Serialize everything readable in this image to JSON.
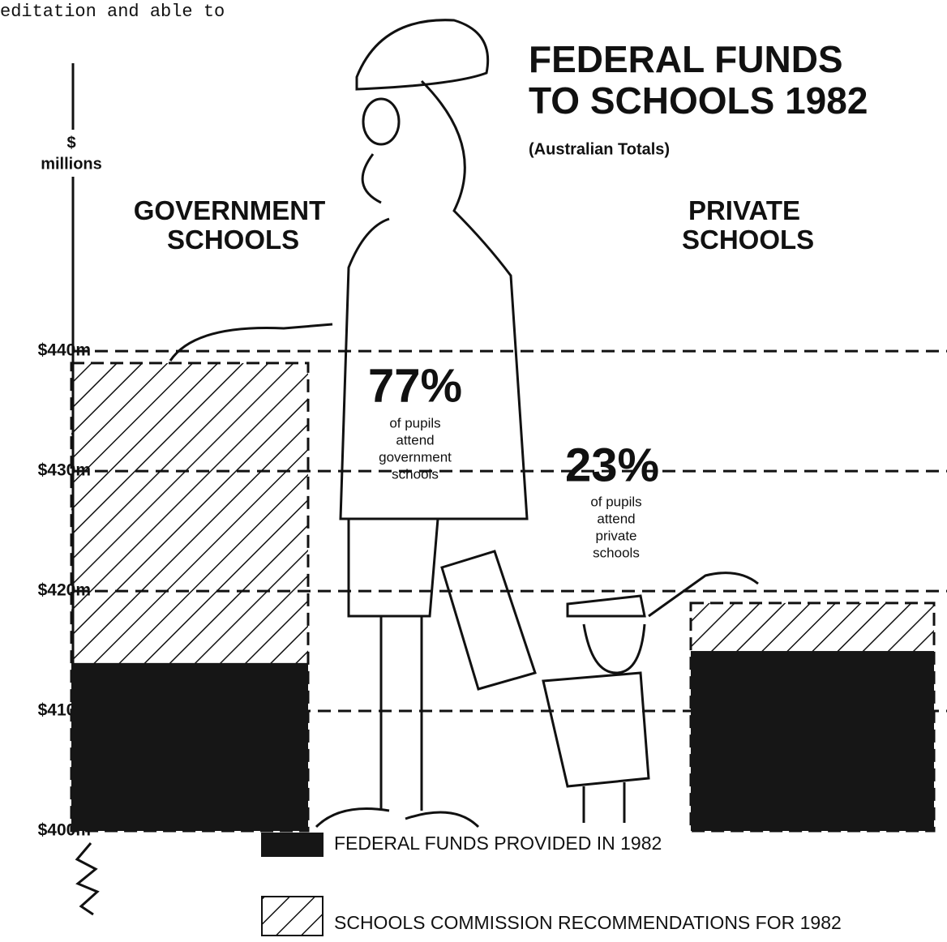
{
  "page_fragment": "editation and able to",
  "chart_data": {
    "type": "bar",
    "title": [
      "FEDERAL FUNDS",
      "TO SCHOOLS 1982"
    ],
    "subtitle": "(Australian Totals)",
    "y_label": [
      "$",
      "millions"
    ],
    "categories": [
      "GOVERNMENT SCHOOLS",
      "PRIVATE SCHOOLS"
    ],
    "series": [
      {
        "name": "FEDERAL FUNDS PROVIDED IN 1982",
        "color": "#161616",
        "fill": "solid",
        "values": [
          414,
          415
        ]
      },
      {
        "name": "SCHOOLS COMMISSION RECOMMENDATIONS FOR 1982",
        "color": "#111111",
        "fill": "hatch",
        "values": [
          439,
          419
        ]
      }
    ],
    "annotations": [
      {
        "text": "77%",
        "note": [
          "of pupils",
          "attend",
          "government",
          "schools"
        ]
      },
      {
        "text": "23%",
        "note": [
          "of pupils",
          "attend",
          "private",
          "schools"
        ]
      }
    ],
    "ylim": [
      400,
      464
    ],
    "yticks": [
      {
        "value": 400,
        "label": "$400m"
      },
      {
        "value": 410,
        "label": "$410m"
      },
      {
        "value": 420,
        "label": "$420m"
      },
      {
        "value": 430,
        "label": "$430m"
      },
      {
        "value": 440,
        "label": "$440m"
      }
    ],
    "grid": true
  }
}
